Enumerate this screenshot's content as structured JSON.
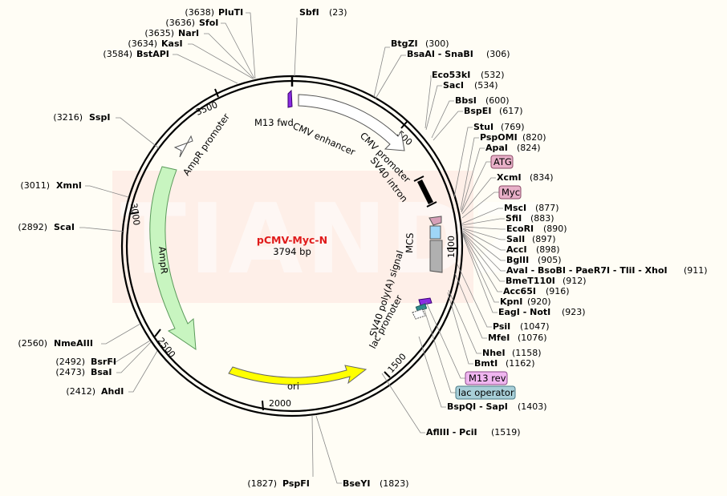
{
  "title": "pCMV-Myc-N",
  "size_label": "3794 bp",
  "watermark": "TIANDZ",
  "ticks": [
    "500",
    "1000",
    "1500",
    "2000",
    "2500",
    "3000",
    "3500"
  ],
  "colors": {
    "title": "#e01b1b",
    "ampR": "#c8f5c0",
    "ori": "#ffff00",
    "watermark_bg": "#fde4dc",
    "atg_box": "#e8b0c8",
    "m13rev_box": "#f0b6f0",
    "lacop_box": "#a8cfd8"
  },
  "features": {
    "m13fwd": "M13 fwd",
    "cmv_enhancer": "CMV enhancer",
    "cmv_promoter": "CMV promoter",
    "sv40_intron": "SV40 intron",
    "ampr_promoter": "AmpR promoter",
    "ampr": "AmpR",
    "mcs": "MCS",
    "sv40_polya": "SV40 poly(A) signal",
    "lac_promoter": "lac promoter",
    "ori": "ori"
  },
  "boxes": {
    "atg": "ATG",
    "myc": "Myc",
    "m13rev": "M13 rev",
    "lac_operator": "lac operator"
  },
  "sites_left": [
    {
      "pos": "(3638)",
      "name": "PluTI"
    },
    {
      "pos": "(3636)",
      "name": "SfoI"
    },
    {
      "pos": "(3635)",
      "name": "NarI"
    },
    {
      "pos": "(3634)",
      "name": "KasI"
    },
    {
      "pos": "(3584)",
      "name": "BstAPI"
    },
    {
      "pos": "(3216)",
      "name": "SspI"
    },
    {
      "pos": "(3011)",
      "name": "XmnI"
    },
    {
      "pos": "(2892)",
      "name": "ScaI"
    },
    {
      "pos": "(2560)",
      "name": "NmeAIII"
    },
    {
      "pos": "(2492)",
      "name": "BsrFI"
    },
    {
      "pos": "(2473)",
      "name": "BsaI"
    },
    {
      "pos": "(2412)",
      "name": "AhdI"
    },
    {
      "pos": "(1827)",
      "name": "PspFI"
    }
  ],
  "sites_right": [
    {
      "name": "SbfI",
      "pos": "(23)"
    },
    {
      "name": "BtgZI",
      "pos": "(300)"
    },
    {
      "name": "BsaAI - SnaBI",
      "pos": "(306)"
    },
    {
      "name": "Eco53kI",
      "pos": "(532)"
    },
    {
      "name": "SacI",
      "pos": "(534)"
    },
    {
      "name": "BbsI",
      "pos": "(600)"
    },
    {
      "name": "BspEI",
      "pos": "(617)"
    },
    {
      "name": "StuI",
      "pos": "(769)"
    },
    {
      "name": "PspOMI",
      "pos": "(820)"
    },
    {
      "name": "ApaI",
      "pos": "(824)"
    },
    {
      "name": "XcmI",
      "pos": "(834)"
    },
    {
      "name": "MscI",
      "pos": "(877)"
    },
    {
      "name": "SfiI",
      "pos": "(883)"
    },
    {
      "name": "EcoRI",
      "pos": "(890)"
    },
    {
      "name": "SalI",
      "pos": "(897)"
    },
    {
      "name": "AccI",
      "pos": "(898)"
    },
    {
      "name": "BglII",
      "pos": "(905)"
    },
    {
      "name": "AvaI - BsoBI - PaeR7I - TliI - XhoI",
      "pos": "(911)"
    },
    {
      "name": "BmeT110I",
      "pos": "(912)"
    },
    {
      "name": "Acc65I",
      "pos": "(916)"
    },
    {
      "name": "KpnI",
      "pos": "(920)"
    },
    {
      "name": "EagI - NotI",
      "pos": "(923)"
    },
    {
      "name": "PsiI",
      "pos": "(1047)"
    },
    {
      "name": "MfeI",
      "pos": "(1076)"
    },
    {
      "name": "NheI",
      "pos": "(1158)"
    },
    {
      "name": "BmtI",
      "pos": "(1162)"
    },
    {
      "name": "BspQI - SapI",
      "pos": "(1403)"
    },
    {
      "name": "AflIII - PciI",
      "pos": "(1519)"
    },
    {
      "name": "BseYI",
      "pos": "(1823)"
    }
  ]
}
